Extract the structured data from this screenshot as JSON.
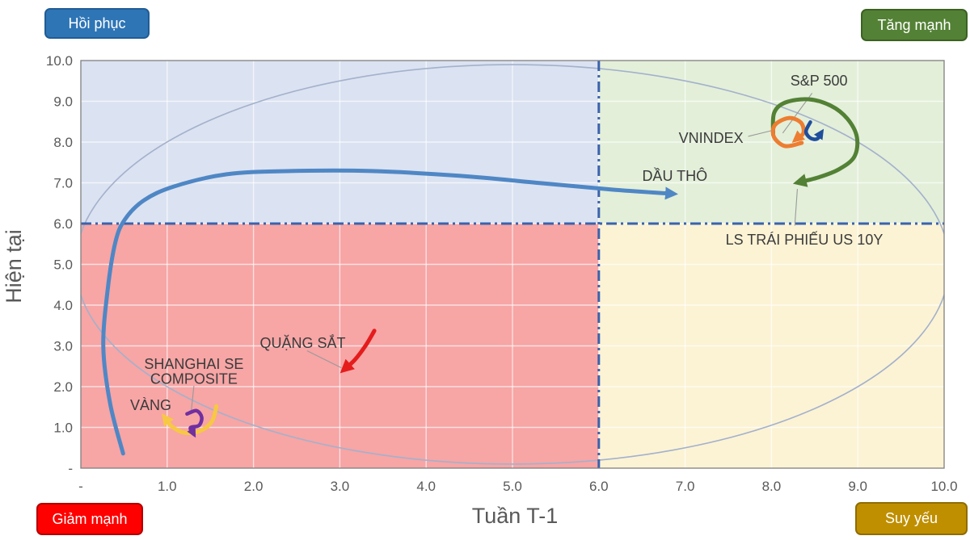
{
  "corner_buttons": {
    "top_left": {
      "label": "Hồi phục",
      "bg": "#2e75b6",
      "border": "#215c93"
    },
    "top_right": {
      "label": "Tăng mạnh",
      "bg": "#538135",
      "border": "#3c6123"
    },
    "bottom_left": {
      "label": "Giảm mạnh",
      "bg": "#fe0000",
      "border": "#b30000"
    },
    "bottom_right": {
      "label": "Suy yếu",
      "bg": "#bf8f00",
      "border": "#8f6c00"
    }
  },
  "chart_data": {
    "type": "line",
    "title": "",
    "x_axis": {
      "label": "Tuần T-1",
      "range": [
        0,
        10
      ],
      "ticks": [
        "-",
        "1.0",
        "2.0",
        "3.0",
        "4.0",
        "5.0",
        "6.0",
        "7.0",
        "8.0",
        "9.0",
        "10.0"
      ]
    },
    "y_axis": {
      "label": "Hiện tại",
      "range": [
        0,
        10
      ],
      "ticks": [
        "-",
        "1.0",
        "2.0",
        "3.0",
        "4.0",
        "5.0",
        "6.0",
        "7.0",
        "8.0",
        "9.0",
        "10.0"
      ]
    },
    "grid": true,
    "quadrants": {
      "divider_x": 6,
      "divider_y": 6,
      "divider_color": "#3a62ad",
      "fills": {
        "top_left": "#dbe2f1",
        "top_right": "#e3efd9",
        "bottom_left": "#f7a5a5",
        "bottom_right": "#fcf3d5"
      }
    },
    "ellipse": {
      "cx": 5.0,
      "cy": 5.0,
      "rx": 5.06,
      "ry": 4.9,
      "color": "#a3b1cc"
    },
    "series": [
      {
        "name": "DẦU THÔ",
        "color": "#4f87c5",
        "width": 5,
        "arrow": true,
        "msize": 3.2,
        "points": [
          [
            0.49,
            0.36
          ],
          [
            0.34,
            1.58
          ],
          [
            0.26,
            2.97
          ],
          [
            0.31,
            4.36
          ],
          [
            0.4,
            5.54
          ],
          [
            0.51,
            6.1
          ],
          [
            0.73,
            6.57
          ],
          [
            1.08,
            6.91
          ],
          [
            1.69,
            7.21
          ],
          [
            2.43,
            7.29
          ],
          [
            3.37,
            7.29
          ],
          [
            4.4,
            7.17
          ],
          [
            5.34,
            6.99
          ],
          [
            6.18,
            6.83
          ],
          [
            6.86,
            6.73
          ]
        ],
        "label": {
          "text": "DẦU THÔ",
          "x": 6.88,
          "y": 7.05,
          "anchor": "middle"
        },
        "leader": null
      },
      {
        "name": "LS TRÁI PHIẾU US 10Y",
        "color": "#538135",
        "width": 5,
        "arrow": true,
        "msize": 3.4,
        "points": [
          [
            8.02,
            8.18
          ],
          [
            8.03,
            8.71
          ],
          [
            8.16,
            8.97
          ],
          [
            8.43,
            9.05
          ],
          [
            8.69,
            8.89
          ],
          [
            8.88,
            8.57
          ],
          [
            8.99,
            8.12
          ],
          [
            8.96,
            7.64
          ],
          [
            8.78,
            7.33
          ],
          [
            8.54,
            7.13
          ],
          [
            8.31,
            7.01
          ]
        ],
        "label": {
          "text": "LS TRÁI PHIẾU US 10Y",
          "x": 8.38,
          "y": 5.49,
          "anchor": "middle"
        },
        "leader": [
          [
            8.3,
            6.85
          ],
          [
            8.27,
            5.95
          ]
        ]
      },
      {
        "name": "S&P 500",
        "color": "#ed7d31",
        "width": 5,
        "arrow": true,
        "msize": 3.0,
        "points": [
          [
            8.35,
            7.98
          ],
          [
            8.16,
            7.9
          ],
          [
            8.03,
            8.12
          ],
          [
            8.04,
            8.42
          ],
          [
            8.2,
            8.59
          ],
          [
            8.34,
            8.48
          ],
          [
            8.37,
            8.22
          ],
          [
            8.28,
            8.06
          ]
        ],
        "label": {
          "text": "S&P 500",
          "x": 8.55,
          "y": 9.39,
          "anchor": "middle"
        },
        "leader": [
          [
            8.47,
            9.2
          ],
          [
            8.13,
            8.22
          ]
        ]
      },
      {
        "name": "VNINDEX",
        "color": "#1f4e9c",
        "width": 4.5,
        "arrow": true,
        "msize": 2.8,
        "points": [
          [
            8.45,
            8.49
          ],
          [
            8.4,
            8.26
          ],
          [
            8.45,
            8.1
          ],
          [
            8.53,
            8.08
          ],
          [
            8.58,
            8.24
          ]
        ],
        "label": {
          "text": "VNINDEX",
          "x": 7.3,
          "y": 7.98,
          "anchor": "middle"
        },
        "leader": [
          [
            7.73,
            8.14
          ],
          [
            8.0,
            8.28
          ]
        ]
      },
      {
        "name": "QUẶNG SẮT",
        "color": "#e51c1c",
        "width": 5,
        "arrow": true,
        "msize": 3.4,
        "points": [
          [
            3.4,
            3.37
          ],
          [
            3.3,
            3.01
          ],
          [
            3.17,
            2.65
          ],
          [
            3.05,
            2.42
          ]
        ],
        "label": {
          "text": "QUẶNG SẮT",
          "x": 2.57,
          "y": 2.95,
          "anchor": "middle"
        },
        "leader": [
          [
            2.62,
            2.88
          ],
          [
            3.02,
            2.46
          ]
        ]
      },
      {
        "name": "VÀNG",
        "color": "#f7c843",
        "width": 5,
        "arrow": true,
        "msize": 3.0,
        "points": [
          [
            1.57,
            1.52
          ],
          [
            1.52,
            1.15
          ],
          [
            1.38,
            0.91
          ],
          [
            1.2,
            0.87
          ],
          [
            1.05,
            1.03
          ],
          [
            0.97,
            1.25
          ]
        ],
        "label": {
          "text": "VÀNG",
          "x": 0.81,
          "y": 1.43,
          "anchor": "middle"
        },
        "leader": null
      },
      {
        "name": "SHANGHAI SE COMPOSITE",
        "color": "#7030a0",
        "width": 4.5,
        "arrow": true,
        "msize": 2.6,
        "points": [
          [
            1.23,
            1.33
          ],
          [
            1.34,
            1.41
          ],
          [
            1.4,
            1.25
          ],
          [
            1.37,
            1.05
          ],
          [
            1.27,
            0.99
          ],
          [
            1.31,
            0.83
          ]
        ],
        "label": {
          "text": "SHANGHAI SE\nCOMPOSITE",
          "x": 1.31,
          "y": 2.44,
          "anchor": "middle"
        },
        "leader": [
          [
            1.31,
            2.02
          ],
          [
            1.28,
            1.42
          ]
        ]
      }
    ]
  }
}
